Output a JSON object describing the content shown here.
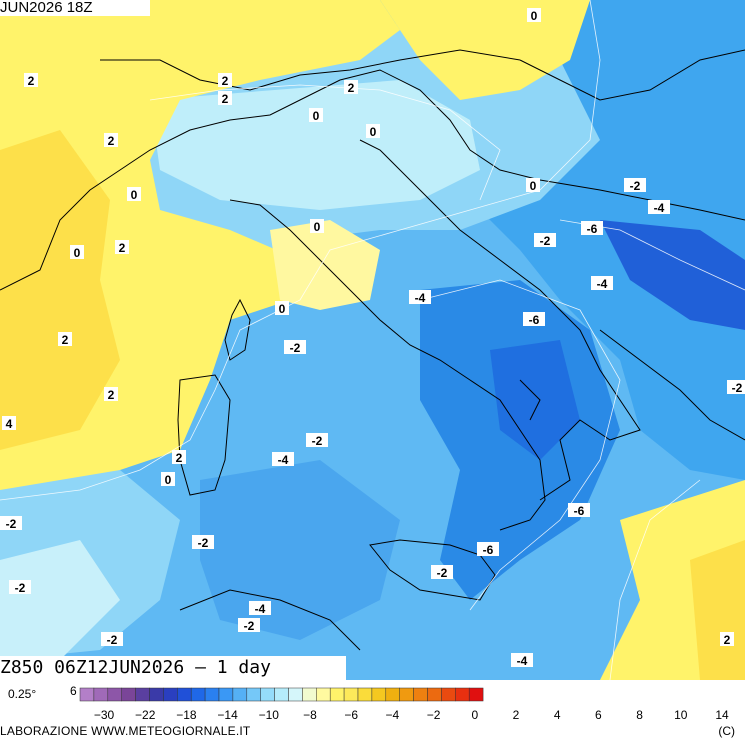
{
  "map": {
    "top_title": "JUN2026 18Z",
    "bottom_title": "Z850 06Z12JUN2026 – 1 day",
    "contour_labels": [
      {
        "id": "l1",
        "text": "0"
      },
      {
        "id": "l2",
        "text": "2"
      },
      {
        "id": "l3",
        "text": "2"
      },
      {
        "id": "l4",
        "text": "2"
      },
      {
        "id": "l5",
        "text": "2"
      },
      {
        "id": "l6",
        "text": "0"
      },
      {
        "id": "l7",
        "text": "0"
      },
      {
        "id": "l8",
        "text": "2"
      },
      {
        "id": "l9",
        "text": "0"
      },
      {
        "id": "l10",
        "text": "0"
      },
      {
        "id": "l11",
        "text": "-2"
      },
      {
        "id": "l12",
        "text": "-4"
      },
      {
        "id": "l13",
        "text": "2"
      },
      {
        "id": "l14",
        "text": "0"
      },
      {
        "id": "l15",
        "text": "0"
      },
      {
        "id": "l16",
        "text": "-6"
      },
      {
        "id": "l17",
        "text": "-2"
      },
      {
        "id": "l18",
        "text": "-4"
      },
      {
        "id": "l19",
        "text": "-4"
      },
      {
        "id": "l20",
        "text": "0"
      },
      {
        "id": "l21",
        "text": "-6"
      },
      {
        "id": "l22",
        "text": "2"
      },
      {
        "id": "l23",
        "text": "-2"
      },
      {
        "id": "l24",
        "text": "2"
      },
      {
        "id": "l25",
        "text": "4"
      },
      {
        "id": "l26",
        "text": "-2"
      },
      {
        "id": "l27",
        "text": "-4"
      },
      {
        "id": "l28",
        "text": "2"
      },
      {
        "id": "l29",
        "text": "0"
      },
      {
        "id": "l30",
        "text": "-6"
      },
      {
        "id": "l31",
        "text": "-2"
      },
      {
        "id": "l32",
        "text": "-6"
      },
      {
        "id": "l33",
        "text": "-2"
      },
      {
        "id": "l34",
        "text": "-2"
      },
      {
        "id": "l35",
        "text": "-2"
      },
      {
        "id": "l36",
        "text": "-4"
      },
      {
        "id": "l37",
        "text": "-2"
      },
      {
        "id": "l38",
        "text": "-2"
      },
      {
        "id": "l39",
        "text": "-4"
      },
      {
        "id": "l40",
        "text": "2"
      },
      {
        "id": "l41",
        "text": "-2"
      }
    ]
  },
  "legend": {
    "resolution": "0.25°",
    "scale_start_label": "6",
    "ticks": [
      "−30",
      "−22",
      "−18",
      "−14",
      "−10",
      "−8",
      "−6",
      "−4",
      "−2",
      "0",
      "2",
      "4",
      "6",
      "8",
      "10",
      "14"
    ],
    "credit": "LABORAZIONE  WWW.METEOGIORNALE.IT",
    "copyright": "(C)",
    "colors": [
      "#b37fc8",
      "#a06ab8",
      "#8d56a8",
      "#7a4598",
      "#5a3fa0",
      "#3a3aa8",
      "#2a3fc0",
      "#2050d8",
      "#1f68e8",
      "#2a80f0",
      "#3a98f5",
      "#55b0f5",
      "#75c8f8",
      "#95dcfa",
      "#b5ecfb",
      "#d5f6fa",
      "#f2fbcf",
      "#fffaa0",
      "#fff36a",
      "#fde95a",
      "#fadc3a",
      "#f5c820",
      "#f0b010",
      "#f09a10",
      "#ee8010",
      "#ec6a10",
      "#ea4a10",
      "#e83010",
      "#e01010"
    ]
  }
}
